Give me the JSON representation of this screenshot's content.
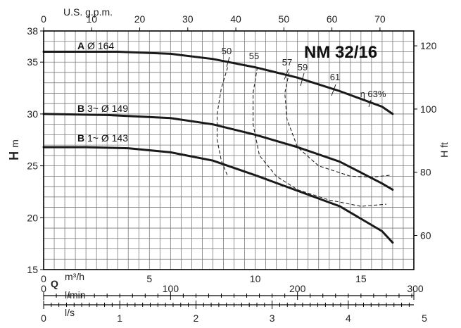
{
  "chart_data": {
    "type": "line",
    "title": "NM 32/16",
    "primary_x": {
      "unit": "m³/h",
      "symbol": "Q",
      "range": [
        0,
        17.5
      ],
      "ticks": [
        "0",
        "5",
        "10",
        "15"
      ]
    },
    "primary_y": {
      "symbol": "H",
      "unit": "m",
      "range": [
        15,
        38
      ],
      "ticks": [
        "15",
        "20",
        "25",
        "30",
        "35",
        "38"
      ]
    },
    "top_axis": {
      "label": "U.S. g.p.m.",
      "range": [
        0,
        77.05
      ],
      "ticks": [
        "0",
        "10",
        "20",
        "30",
        "40",
        "50",
        "60",
        "70"
      ]
    },
    "right_axis": {
      "label": "H ft",
      "range": [
        49.2,
        124.7
      ],
      "ticks": [
        "60",
        "80",
        "100",
        "120"
      ]
    },
    "lmin_axis": {
      "label": "l/min",
      "range": [
        0,
        291.67
      ],
      "ticks": [
        "0",
        "100",
        "200",
        "300"
      ]
    },
    "ls_axis": {
      "label": "l/s",
      "range": [
        0,
        4.861
      ],
      "ticks": [
        "0",
        "1",
        "2",
        "3",
        "4",
        "5"
      ]
    },
    "grid": true,
    "series": [
      {
        "letter": "A",
        "name": " Ø 164",
        "x": [
          0,
          3.5,
          6,
          8,
          10,
          12,
          14,
          16,
          16.5
        ],
        "y": [
          36.0,
          36.0,
          35.8,
          35.3,
          34.5,
          33.5,
          32.2,
          30.7,
          30.0
        ]
      },
      {
        "letter": "B",
        "name": " 3~ Ø 149",
        "x": [
          0,
          3,
          6,
          8,
          10,
          12,
          14,
          16,
          16.5
        ],
        "y": [
          30.0,
          29.9,
          29.6,
          29.0,
          28.0,
          26.8,
          25.4,
          23.3,
          22.7
        ]
      },
      {
        "letter": "B",
        "name": " 1~ Ø 143",
        "x": [
          0,
          2,
          4,
          6,
          8,
          10,
          12,
          14,
          16,
          16.5
        ],
        "y": [
          26.8,
          26.8,
          26.7,
          26.3,
          25.5,
          24.1,
          22.6,
          21.1,
          18.7,
          17.6
        ]
      }
    ],
    "efficiency_curves": [
      {
        "label": "50",
        "x": [
          8.7,
          8.4,
          8.2,
          8.2,
          8.4,
          8.7
        ],
        "y": [
          34.5,
          32.5,
          30.0,
          27.5,
          25.5,
          24.0
        ]
      },
      {
        "label": "55",
        "x": [
          10.1,
          9.9,
          9.9,
          10.2,
          11.0,
          12.0,
          13.5,
          15.0,
          16.2
        ],
        "y": [
          34.5,
          32.0,
          29.0,
          26.0,
          24.0,
          22.7,
          21.7,
          21.1,
          21.3
        ]
      },
      {
        "label": "57",
        "x": [
          11.6,
          11.4,
          11.5,
          12.0,
          13.0,
          14.5,
          15.5,
          16.4
        ],
        "y": [
          34.0,
          32.0,
          29.5,
          26.8,
          25.0,
          24.0,
          23.9,
          24.1
        ]
      }
    ],
    "efficiency_labels": [
      "50",
      "55",
      "57",
      "59",
      "61",
      "η 63%"
    ]
  }
}
